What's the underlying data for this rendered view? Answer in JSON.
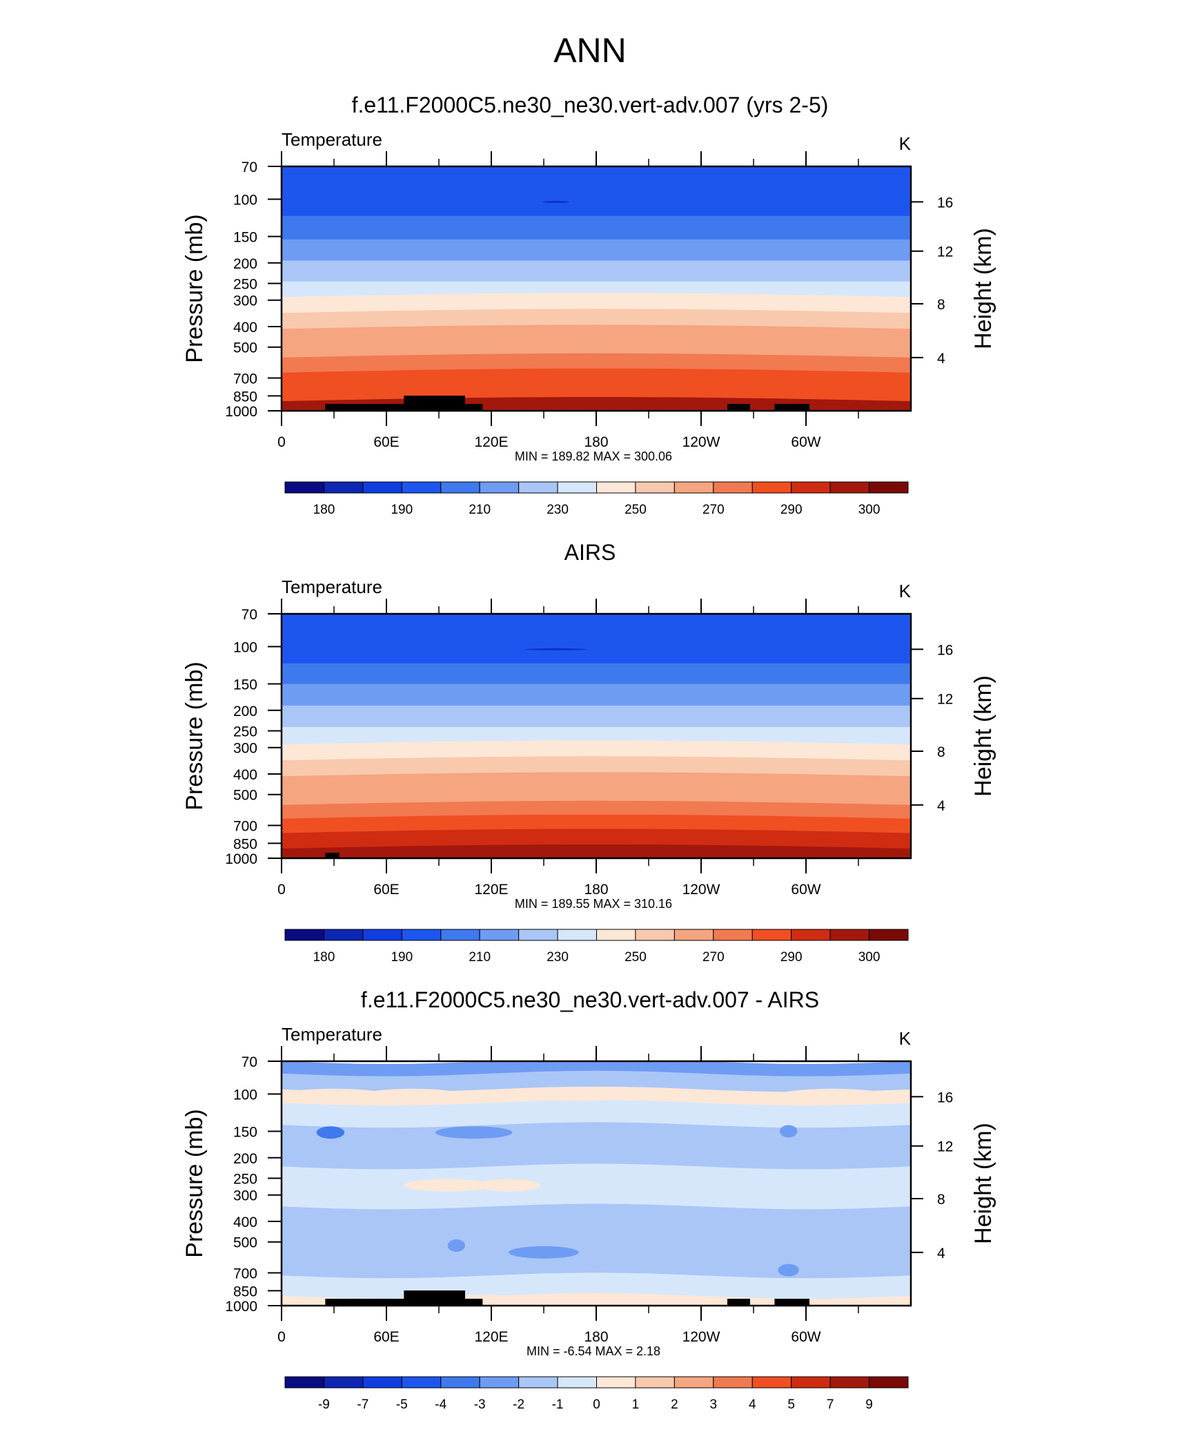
{
  "figure": {
    "main_title": "ANN"
  },
  "chart_data": [
    {
      "type": "heatmap",
      "title": "f.e11.F2000C5.ne30_ne30.vert-adv.007 (yrs 2-5)",
      "subtitle_left": "Temperature",
      "subtitle_right": "K",
      "ylabel": "Pressure (mb)",
      "ylabel_right": "Height (km)",
      "x_ticks": [
        "0",
        "60E",
        "120E",
        "180",
        "120W",
        "60W"
      ],
      "y_ticks": [
        "70",
        "100",
        "150",
        "200",
        "250",
        "300",
        "400",
        "500",
        "700",
        "850",
        "1000"
      ],
      "y_right_ticks": [
        "16",
        "12",
        "8",
        "4"
      ],
      "min": 189.82,
      "max": 300.06,
      "minmax_text": "MIN = 189.82  MAX = 300.06",
      "colorbar_labels": [
        "180",
        "190",
        "210",
        "230",
        "250",
        "270",
        "290",
        "300"
      ],
      "layers": [
        {
          "p_top": 70,
          "p_bot": 120,
          "value": 195
        },
        {
          "p_top": 120,
          "p_bot": 155,
          "value": 205
        },
        {
          "p_top": 155,
          "p_bot": 195,
          "value": 215
        },
        {
          "p_top": 195,
          "p_bot": 245,
          "value": 225
        },
        {
          "p_top": 245,
          "p_bot": 290,
          "value": 235
        },
        {
          "p_top": 290,
          "p_bot": 345,
          "value": 245
        },
        {
          "p_top": 345,
          "p_bot": 410,
          "value": 255
        },
        {
          "p_top": 410,
          "p_bot": 480,
          "value": 262
        },
        {
          "p_top": 480,
          "p_bot": 560,
          "value": 268
        },
        {
          "p_top": 560,
          "p_bot": 660,
          "value": 275
        },
        {
          "p_top": 660,
          "p_bot": 760,
          "value": 282
        },
        {
          "p_top": 760,
          "p_bot": 900,
          "value": 288
        },
        {
          "p_top": 900,
          "p_bot": 1000,
          "value": 296
        }
      ]
    },
    {
      "type": "heatmap",
      "title": "AIRS",
      "subtitle_left": "Temperature",
      "subtitle_right": "K",
      "ylabel": "Pressure (mb)",
      "ylabel_right": "Height (km)",
      "x_ticks": [
        "0",
        "60E",
        "120E",
        "180",
        "120W",
        "60W"
      ],
      "y_ticks": [
        "70",
        "100",
        "150",
        "200",
        "250",
        "300",
        "400",
        "500",
        "700",
        "850",
        "1000"
      ],
      "y_right_ticks": [
        "16",
        "12",
        "8",
        "4"
      ],
      "min": 189.55,
      "max": 310.16,
      "minmax_text": "MIN = 189.55  MAX = 310.16",
      "colorbar_labels": [
        "180",
        "190",
        "210",
        "230",
        "250",
        "270",
        "290",
        "300"
      ],
      "layers": [
        {
          "p_top": 70,
          "p_bot": 120,
          "value": 195
        },
        {
          "p_top": 120,
          "p_bot": 150,
          "value": 205
        },
        {
          "p_top": 150,
          "p_bot": 190,
          "value": 215
        },
        {
          "p_top": 190,
          "p_bot": 240,
          "value": 225
        },
        {
          "p_top": 240,
          "p_bot": 290,
          "value": 235
        },
        {
          "p_top": 290,
          "p_bot": 345,
          "value": 245
        },
        {
          "p_top": 345,
          "p_bot": 410,
          "value": 255
        },
        {
          "p_top": 410,
          "p_bot": 480,
          "value": 262
        },
        {
          "p_top": 480,
          "p_bot": 560,
          "value": 268
        },
        {
          "p_top": 560,
          "p_bot": 650,
          "value": 275
        },
        {
          "p_top": 650,
          "p_bot": 760,
          "value": 282
        },
        {
          "p_top": 760,
          "p_bot": 900,
          "value": 290
        },
        {
          "p_top": 900,
          "p_bot": 1000,
          "value": 298
        }
      ]
    },
    {
      "type": "heatmap",
      "title": "f.e11.F2000C5.ne30_ne30.vert-adv.007 - AIRS",
      "subtitle_left": "Temperature",
      "subtitle_right": "K",
      "ylabel": "Pressure (mb)",
      "ylabel_right": "Height (km)",
      "x_ticks": [
        "0",
        "60E",
        "120E",
        "180",
        "120W",
        "60W"
      ],
      "y_ticks": [
        "70",
        "100",
        "150",
        "200",
        "250",
        "300",
        "400",
        "500",
        "700",
        "850",
        "1000"
      ],
      "y_right_ticks": [
        "16",
        "12",
        "8",
        "4"
      ],
      "min": -6.54,
      "max": 2.18,
      "minmax_text": "MIN =  -6.54  MAX =   2.18",
      "colorbar_labels": [
        "-9",
        "-7",
        "-5",
        "-4",
        "-3",
        "-2",
        "-1",
        "0",
        "1",
        "2",
        "3",
        "4",
        "5",
        "7",
        "9"
      ],
      "layers": [
        {
          "p_top": 70,
          "p_bot": 80,
          "value": -2.5
        },
        {
          "p_top": 80,
          "p_bot": 95,
          "value": -1.5
        },
        {
          "p_top": 95,
          "p_bot": 110,
          "value": 0.5
        },
        {
          "p_top": 110,
          "p_bot": 140,
          "value": -0.5
        },
        {
          "p_top": 140,
          "p_bot": 220,
          "value": -1.5
        },
        {
          "p_top": 220,
          "p_bot": 340,
          "value": -0.5
        },
        {
          "p_top": 340,
          "p_bot": 430,
          "value": -1.5
        },
        {
          "p_top": 430,
          "p_bot": 720,
          "value": -1.5
        },
        {
          "p_top": 720,
          "p_bot": 900,
          "value": -0.5
        },
        {
          "p_top": 900,
          "p_bot": 1000,
          "value": 0.5
        }
      ],
      "blobs": [
        {
          "lon": 30,
          "p": 101,
          "dlon": 30,
          "value": 0.5
        },
        {
          "lon": 75,
          "p": 101,
          "dlon": 28,
          "value": 0.5
        },
        {
          "lon": 170,
          "p": 101,
          "dlon": 32,
          "value": 0.5
        },
        {
          "lon": 315,
          "p": 101,
          "dlon": 30,
          "value": 0.5
        },
        {
          "lon": 95,
          "p": 270,
          "dlon": 25,
          "value": 0.5
        },
        {
          "lon": 130,
          "p": 270,
          "dlon": 18,
          "value": 0.5
        },
        {
          "lon": 28,
          "p": 152,
          "dlon": 8,
          "value": -3.5
        },
        {
          "lon": 110,
          "p": 152,
          "dlon": 22,
          "value": -2.5
        },
        {
          "lon": 290,
          "p": 150,
          "dlon": 5,
          "value": -2.5
        },
        {
          "lon": 150,
          "p": 560,
          "dlon": 20,
          "value": -2.5
        },
        {
          "lon": 100,
          "p": 520,
          "dlon": 5,
          "value": -2.5
        },
        {
          "lon": 290,
          "p": 680,
          "dlon": 6,
          "value": -2.5
        },
        {
          "lon": 110,
          "p": 950,
          "dlon": 35,
          "value": 0.5
        },
        {
          "lon": 150,
          "p": 950,
          "dlon": 18,
          "value": 0.5
        }
      ]
    }
  ]
}
